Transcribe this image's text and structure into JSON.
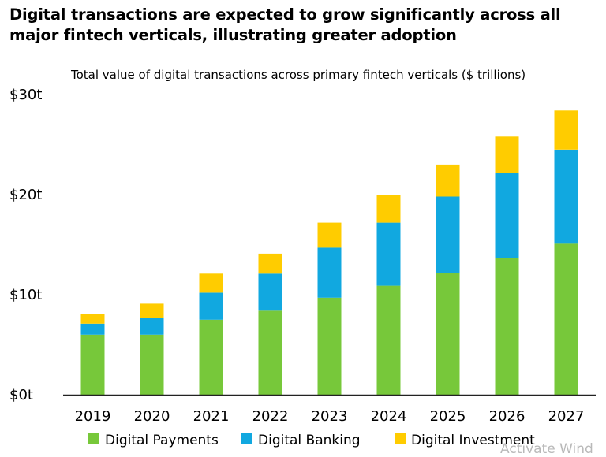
{
  "chart_data": {
    "type": "bar",
    "stacked": true,
    "title": "Digital transactions are expected to grow significantly across all major fintech verticals, illustrating greater adoption",
    "subtitle": "Total value of digital transactions across primary fintech verticals ($ trillions)",
    "categories": [
      "2019",
      "2020",
      "2021",
      "2022",
      "2023",
      "2024",
      "2025",
      "2026",
      "2027"
    ],
    "y_ticks": [
      "$0t",
      "$10t",
      "$20t",
      "$30t"
    ],
    "ylim": [
      0,
      30
    ],
    "grid": false,
    "legend_position": "bottom",
    "series": [
      {
        "name": "Digital Payments",
        "color": "#77c83a",
        "values": [
          6.0,
          6.0,
          7.5,
          8.4,
          9.7,
          10.9,
          12.2,
          13.7,
          15.1
        ]
      },
      {
        "name": "Digital Banking",
        "color": "#11a8e0",
        "values": [
          1.1,
          1.7,
          2.7,
          3.7,
          5.0,
          6.3,
          7.6,
          8.5,
          9.4
        ]
      },
      {
        "name": "Digital Investment",
        "color": "#ffcc00",
        "values": [
          1.0,
          1.4,
          1.9,
          2.0,
          2.5,
          2.8,
          3.2,
          3.6,
          3.9
        ]
      }
    ]
  },
  "watermark": "Activate Wind"
}
